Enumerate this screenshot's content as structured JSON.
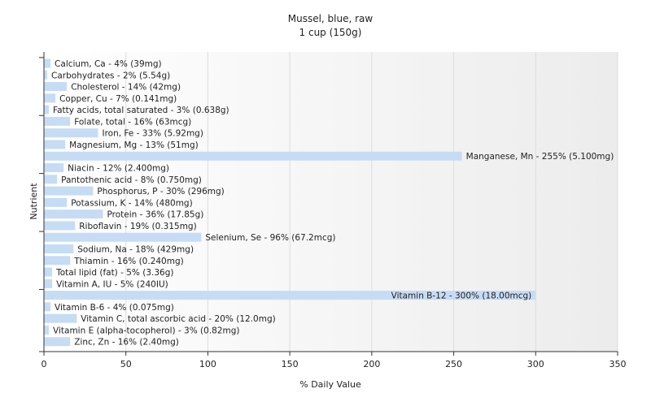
{
  "chart_data": {
    "type": "bar",
    "orientation": "horizontal",
    "title": "Mussel, blue, raw",
    "subtitle": "1 cup (150g)",
    "xlabel": "% Daily Value",
    "ylabel": "Nutrient",
    "xlim": [
      0,
      350
    ],
    "xticks": [
      "0",
      "50",
      "100",
      "150",
      "200",
      "250",
      "300",
      "350"
    ],
    "grid": true,
    "bar_color": "#c6dcf5",
    "bars": [
      {
        "label": "Calcium, Ca - 4% (39mg)",
        "value": 4
      },
      {
        "label": "Carbohydrates - 2% (5.54g)",
        "value": 2
      },
      {
        "label": "Cholesterol - 14% (42mg)",
        "value": 14
      },
      {
        "label": "Copper, Cu - 7% (0.141mg)",
        "value": 7
      },
      {
        "label": "Fatty acids, total saturated - 3% (0.638g)",
        "value": 3
      },
      {
        "label": "Folate, total - 16% (63mcg)",
        "value": 16
      },
      {
        "label": "Iron, Fe - 33% (5.92mg)",
        "value": 33
      },
      {
        "label": "Magnesium, Mg - 13% (51mg)",
        "value": 13
      },
      {
        "label": "Manganese, Mn - 255% (5.100mg)",
        "value": 255
      },
      {
        "label": "Niacin - 12% (2.400mg)",
        "value": 12
      },
      {
        "label": "Pantothenic acid - 8% (0.750mg)",
        "value": 8
      },
      {
        "label": "Phosphorus, P - 30% (296mg)",
        "value": 30
      },
      {
        "label": "Potassium, K - 14% (480mg)",
        "value": 14
      },
      {
        "label": "Protein - 36% (17.85g)",
        "value": 36
      },
      {
        "label": "Riboflavin - 19% (0.315mg)",
        "value": 19
      },
      {
        "label": "Selenium, Se - 96% (67.2mcg)",
        "value": 96
      },
      {
        "label": "Sodium, Na - 18% (429mg)",
        "value": 18
      },
      {
        "label": "Thiamin - 16% (0.240mg)",
        "value": 16
      },
      {
        "label": "Total lipid (fat) - 5% (3.36g)",
        "value": 5
      },
      {
        "label": "Vitamin A, IU - 5% (240IU)",
        "value": 5
      },
      {
        "label": "Vitamin B-12 - 300% (18.00mcg)",
        "value": 300
      },
      {
        "label": "Vitamin B-6 - 4% (0.075mg)",
        "value": 4
      },
      {
        "label": "Vitamin C, total ascorbic acid - 20% (12.0mg)",
        "value": 20
      },
      {
        "label": "Vitamin E (alpha-tocopherol) - 3% (0.82mg)",
        "value": 3
      },
      {
        "label": "Zinc, Zn - 16% (2.40mg)",
        "value": 16
      }
    ]
  }
}
